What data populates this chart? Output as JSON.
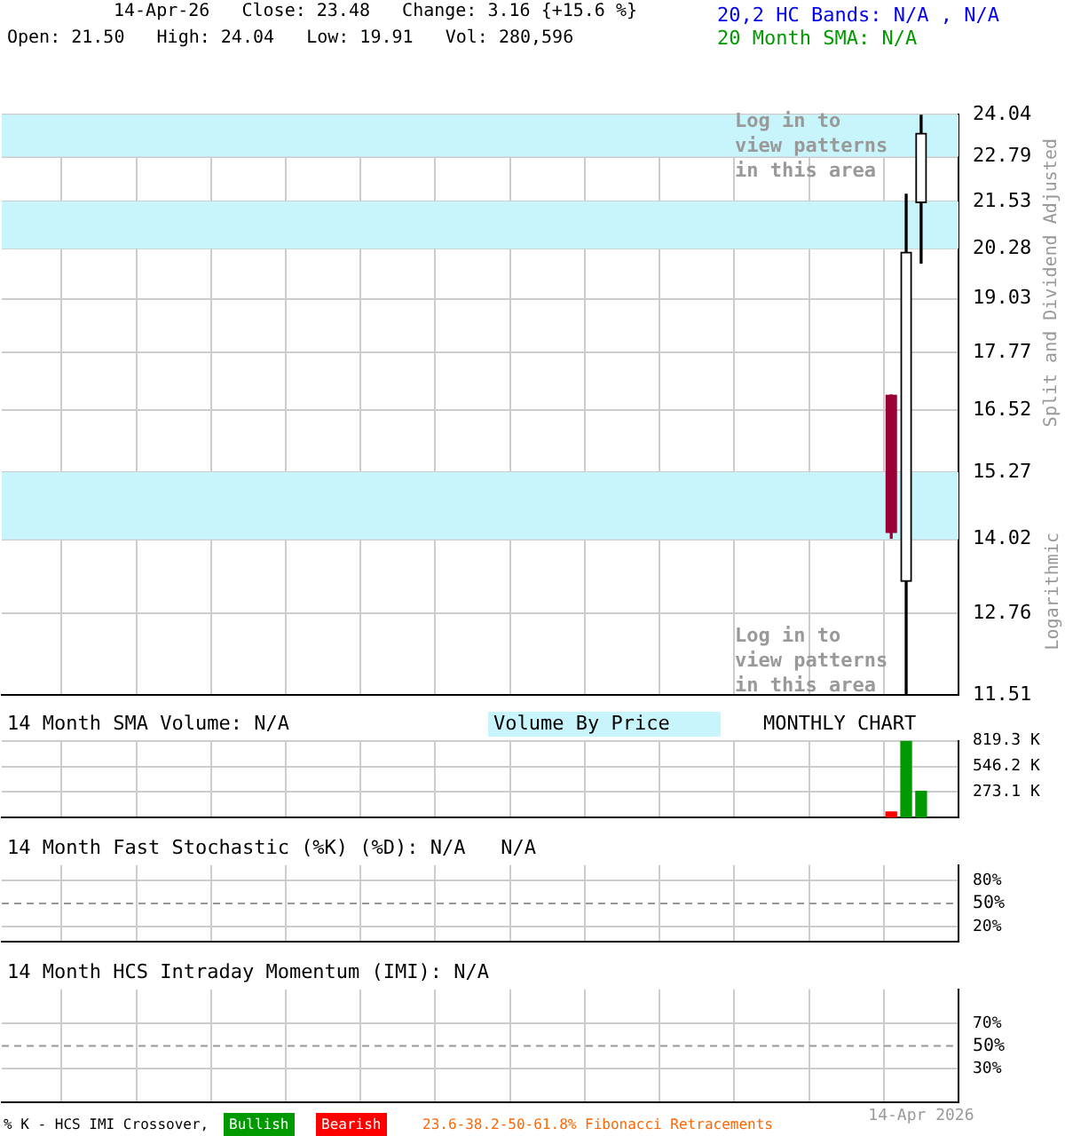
{
  "chart_data": [
    {
      "type": "candlestick",
      "title": "14-Apr-26   Close: 23.48   Change: 3.16 {+15.6 %}",
      "subtitle": "Open: 21.50   High: 24.04   Low: 19.91   Vol: 280,596",
      "ylabel": "Split and Dividend Adjusted",
      "annotations": [
        "20,2 HC Bands: N/A , N/A",
        "20 Month SMA: N/A",
        "Log in to view patterns in this area",
        "Log in to view patterns in this area",
        "Logarithmic"
      ],
      "categories": [
        null,
        null,
        null,
        null,
        null,
        null,
        null,
        null,
        null,
        null,
        null,
        null,
        null,
        null,
        null,
        null,
        null,
        null,
        null,
        null,
        null,
        null,
        null,
        null,
        null,
        null,
        null,
        null,
        null,
        null,
        null,
        null,
        null,
        null,
        null,
        null,
        null,
        null,
        null,
        null,
        null,
        null,
        null,
        null,
        null,
        null,
        null,
        null,
        null,
        null,
        null,
        null,
        null,
        null,
        null,
        null,
        null,
        null,
        null,
        null,
        null,
        null,
        null,
        null
      ],
      "ohlc": [
        null,
        null,
        null,
        null,
        null,
        null,
        null,
        null,
        null,
        null,
        null,
        null,
        null,
        null,
        null,
        null,
        null,
        null,
        null,
        null,
        null,
        null,
        null,
        null,
        null,
        null,
        null,
        null,
        null,
        null,
        null,
        null,
        null,
        null,
        null,
        null,
        null,
        null,
        null,
        null,
        null,
        null,
        null,
        null,
        null,
        null,
        null,
        null,
        null,
        null,
        null,
        null,
        null,
        null,
        null,
        null,
        null,
        null,
        null,
        [
          16.84,
          16.84,
          14.04,
          14.14
        ],
        [
          13.29,
          21.73,
          11.51,
          20.19
        ],
        [
          21.5,
          24.04,
          19.91,
          23.48
        ],
        null,
        null
      ],
      "colors": [
        null,
        null,
        null,
        null,
        null,
        null,
        null,
        null,
        null,
        null,
        null,
        null,
        null,
        null,
        null,
        null,
        null,
        null,
        null,
        null,
        null,
        null,
        null,
        null,
        null,
        null,
        null,
        null,
        null,
        null,
        null,
        null,
        null,
        null,
        null,
        null,
        null,
        null,
        null,
        null,
        null,
        null,
        null,
        null,
        null,
        null,
        null,
        null,
        null,
        null,
        null,
        null,
        null,
        null,
        null,
        null,
        null,
        null,
        null,
        "#990033",
        "#000000",
        "#000000",
        null,
        null
      ],
      "bands": [
        {
          "axis": "y",
          "from": 22.79,
          "to": 24.04,
          "color": "#c8f4fc"
        },
        {
          "axis": "y",
          "from": 20.28,
          "to": 21.53,
          "color": "#c8f4fc"
        },
        {
          "axis": "y",
          "from": 14.02,
          "to": 15.27,
          "color": "#c8f4fc"
        }
      ],
      "log": true,
      "ylim": [
        11.51,
        24.04
      ],
      "yticks": [
        11.51,
        12.76,
        14.02,
        15.27,
        16.52,
        17.77,
        19.03,
        20.28,
        21.53,
        22.79,
        24.04
      ],
      "grid": true,
      "tick_labels": "y"
    },
    {
      "type": "bar",
      "title": "14 Month SMA Volume: N/A",
      "annotations": [
        "Volume By Price",
        "MONTHLY CHART"
      ],
      "categories": [
        null,
        null,
        null,
        null,
        null,
        null,
        null,
        null,
        null,
        null,
        null,
        null,
        null,
        null,
        null,
        null,
        null,
        null,
        null,
        null,
        null,
        null,
        null,
        null,
        null,
        null,
        null,
        null,
        null,
        null,
        null,
        null,
        null,
        null,
        null,
        null,
        null,
        null,
        null,
        null,
        null,
        null,
        null,
        null,
        null,
        null,
        null,
        null,
        null,
        null,
        null,
        null,
        null,
        null,
        null,
        null,
        null,
        null,
        null,
        null,
        null,
        null,
        null,
        null
      ],
      "values": [
        null,
        null,
        null,
        null,
        null,
        null,
        null,
        null,
        null,
        null,
        null,
        null,
        null,
        null,
        null,
        null,
        null,
        null,
        null,
        null,
        null,
        null,
        null,
        null,
        null,
        null,
        null,
        null,
        null,
        null,
        null,
        null,
        null,
        null,
        null,
        null,
        null,
        null,
        null,
        null,
        null,
        null,
        null,
        null,
        null,
        null,
        null,
        null,
        null,
        null,
        null,
        null,
        null,
        null,
        null,
        null,
        null,
        null,
        null,
        60,
        819.3,
        280,
        null,
        null
      ],
      "colors": [
        null,
        null,
        null,
        null,
        null,
        null,
        null,
        null,
        null,
        null,
        null,
        null,
        null,
        null,
        null,
        null,
        null,
        null,
        null,
        null,
        null,
        null,
        null,
        null,
        null,
        null,
        null,
        null,
        null,
        null,
        null,
        null,
        null,
        null,
        null,
        null,
        null,
        null,
        null,
        null,
        null,
        null,
        null,
        null,
        null,
        null,
        null,
        null,
        null,
        null,
        null,
        null,
        null,
        null,
        null,
        null,
        null,
        null,
        null,
        "#ff0000",
        "#009900",
        "#009900",
        null,
        null
      ],
      "ylim": [
        0,
        819.3
      ],
      "yticks": [
        {
          "value": 273.1,
          "label": "273.1 K"
        },
        {
          "value": 546.2,
          "label": "546.2 K"
        },
        {
          "value": 819.3,
          "label": "819.3 K"
        }
      ],
      "grid": true,
      "tick_labels": "y"
    },
    {
      "type": "line",
      "title": "14 Month Fast Stochastic (%K) (%D): N/A   N/A",
      "categories": [
        null,
        null,
        null,
        null,
        null,
        null,
        null,
        null,
        null,
        null,
        null,
        null,
        null,
        null,
        null,
        null,
        null,
        null,
        null,
        null,
        null,
        null,
        null,
        null,
        null,
        null,
        null,
        null,
        null,
        null,
        null,
        null,
        null,
        null,
        null,
        null,
        null,
        null,
        null,
        null,
        null,
        null,
        null,
        null,
        null,
        null,
        null,
        null,
        null,
        null,
        null,
        null,
        null,
        null,
        null,
        null,
        null,
        null,
        null,
        null,
        null,
        null,
        null,
        null
      ],
      "values": [
        null,
        null,
        null,
        null,
        null,
        null,
        null,
        null,
        null,
        null,
        null,
        null,
        null,
        null,
        null,
        null,
        null,
        null,
        null,
        null,
        null,
        null,
        null,
        null,
        null,
        null,
        null,
        null,
        null,
        null,
        null,
        null,
        null,
        null,
        null,
        null,
        null,
        null,
        null,
        null,
        null,
        null,
        null,
        null,
        null,
        null,
        null,
        null,
        null,
        null,
        null,
        null,
        null,
        null,
        null,
        null,
        null,
        null,
        null,
        null,
        null,
        null,
        null,
        null
      ],
      "ylim": [
        0,
        100
      ],
      "yticks": [
        {
          "value": 20,
          "label": "20%"
        },
        {
          "value": 80,
          "label": "80%"
        }
      ],
      "ref_lines": [
        {
          "axis": "y",
          "value": 50,
          "label": "50%",
          "color": "#999999",
          "line_style": "dashed"
        }
      ],
      "grid": true,
      "tick_labels": "y"
    },
    {
      "type": "line",
      "title": "14 Month HCS Intraday Momentum (IMI): N/A",
      "annotations": [
        "% K - HCS IMI Crossover,",
        "Bullish",
        "Bearish",
        "23.6-38.2-50-61.8% Fibonacci Retracements"
      ],
      "categories": [
        null,
        null,
        null,
        null,
        null,
        null,
        null,
        null,
        null,
        null,
        null,
        null,
        null,
        null,
        null,
        null,
        null,
        null,
        null,
        null,
        null,
        null,
        null,
        null,
        null,
        null,
        null,
        null,
        null,
        null,
        null,
        null,
        null,
        null,
        null,
        null,
        null,
        null,
        null,
        null,
        null,
        null,
        null,
        null,
        null,
        null,
        null,
        null,
        null,
        null,
        null,
        null,
        null,
        null,
        null,
        null,
        null,
        null,
        null,
        null,
        null,
        "14-Apr 2026",
        null,
        null
      ],
      "values": [
        null,
        null,
        null,
        null,
        null,
        null,
        null,
        null,
        null,
        null,
        null,
        null,
        null,
        null,
        null,
        null,
        null,
        null,
        null,
        null,
        null,
        null,
        null,
        null,
        null,
        null,
        null,
        null,
        null,
        null,
        null,
        null,
        null,
        null,
        null,
        null,
        null,
        null,
        null,
        null,
        null,
        null,
        null,
        null,
        null,
        null,
        null,
        null,
        null,
        null,
        null,
        null,
        null,
        null,
        null,
        null,
        null,
        null,
        null,
        null,
        null,
        null,
        null,
        null
      ],
      "ylim": [
        0,
        100
      ],
      "yticks": [
        {
          "value": 30,
          "label": "30%"
        },
        {
          "value": 70,
          "label": "70%"
        }
      ],
      "ref_lines": [
        {
          "axis": "y",
          "value": 50,
          "label": "50%",
          "color": "#999999",
          "line_style": "dashed"
        }
      ],
      "grid": true
    }
  ]
}
